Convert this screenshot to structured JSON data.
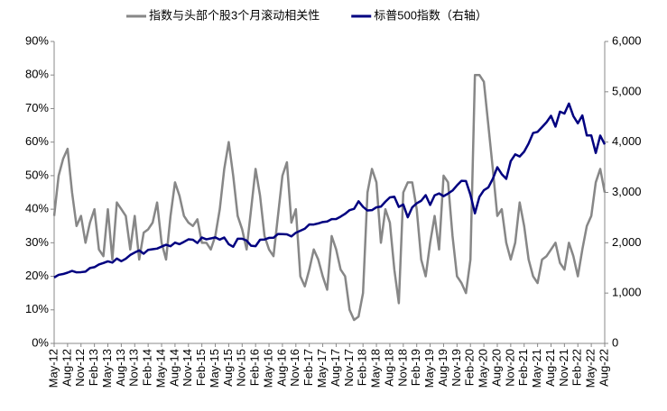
{
  "chart_data": {
    "type": "line",
    "categories": [
      "May-12",
      null,
      null,
      "Aug-12",
      null,
      null,
      "Nov-12",
      null,
      null,
      "Feb-13",
      null,
      null,
      "May-13",
      null,
      null,
      "Aug-13",
      null,
      null,
      "Nov-13",
      null,
      null,
      "Feb-14",
      null,
      null,
      "May-14",
      null,
      null,
      "Aug-14",
      null,
      null,
      "Nov-14",
      null,
      null,
      "Feb-15",
      null,
      null,
      "May-15",
      null,
      null,
      "Aug-15",
      null,
      null,
      "Nov-15",
      null,
      null,
      "Feb-16",
      null,
      null,
      "May-16",
      null,
      null,
      "Aug-16",
      null,
      null,
      "Nov-16",
      null,
      null,
      "Feb-17",
      null,
      null,
      "May-17",
      null,
      null,
      "Aug-17",
      null,
      null,
      "Nov-17",
      null,
      null,
      "Feb-18",
      null,
      null,
      "May-18",
      null,
      null,
      "Aug-18",
      null,
      null,
      "Nov-18",
      null,
      null,
      "Feb-19",
      null,
      null,
      "May-19",
      null,
      null,
      "Aug-19",
      null,
      null,
      "Nov-19",
      null,
      null,
      "Feb-20",
      null,
      null,
      "May-20",
      null,
      null,
      "Aug-20",
      null,
      null,
      "Nov-20",
      null,
      null,
      "Feb-21",
      null,
      null,
      "May-21",
      null,
      null,
      "Aug-21",
      null,
      null,
      "Nov-21",
      null,
      null,
      "Feb-22",
      null,
      null,
      "May-22",
      null,
      null,
      "Aug-22"
    ],
    "series": [
      {
        "name": "指数与头部个股3个月滚动相关性",
        "color": "#878787",
        "axis": "y",
        "values": [
          38,
          50,
          55,
          58,
          45,
          35,
          38,
          30,
          36,
          40,
          28,
          26,
          40,
          25,
          42,
          40,
          38,
          28,
          38,
          25,
          33,
          34,
          36,
          42,
          30,
          25,
          38,
          48,
          44,
          38,
          36,
          35,
          37,
          30,
          30,
          28,
          32,
          40,
          52,
          60,
          50,
          38,
          34,
          28,
          40,
          52,
          44,
          32,
          28,
          26,
          38,
          50,
          54,
          36,
          40,
          20,
          17,
          22,
          28,
          25,
          20,
          16,
          32,
          28,
          22,
          20,
          10,
          7,
          8,
          15,
          45,
          52,
          48,
          30,
          40,
          36,
          22,
          12,
          45,
          48,
          48,
          40,
          25,
          20,
          30,
          38,
          28,
          50,
          48,
          32,
          20,
          18,
          15,
          25,
          80,
          80,
          78,
          65,
          52,
          38,
          40,
          30,
          25,
          30,
          42,
          35,
          25,
          20,
          18,
          25,
          26,
          28,
          30,
          24,
          22,
          30,
          26,
          20,
          28,
          35,
          38,
          48,
          52,
          45
        ]
      },
      {
        "name": "标普500指数（右轴）",
        "color": "#000080",
        "axis": "y2",
        "values": [
          1310,
          1362,
          1379,
          1406,
          1440,
          1412,
          1416,
          1426,
          1498,
          1515,
          1569,
          1597,
          1631,
          1606,
          1686,
          1633,
          1682,
          1757,
          1806,
          1848,
          1783,
          1859,
          1872,
          1884,
          1924,
          1960,
          1931,
          2003,
          1972,
          2018,
          2068,
          2059,
          1995,
          2105,
          2068,
          2086,
          2107,
          2063,
          2104,
          1972,
          1920,
          2079,
          2080,
          2044,
          1940,
          1932,
          2060,
          2065,
          2097,
          2099,
          2174,
          2171,
          2168,
          2126,
          2199,
          2239,
          2279,
          2364,
          2363,
          2384,
          2412,
          2423,
          2470,
          2472,
          2519,
          2575,
          2648,
          2674,
          2824,
          2714,
          2641,
          2648,
          2705,
          2718,
          2816,
          2902,
          2914,
          2712,
          2760,
          2507,
          2704,
          2784,
          2834,
          2946,
          2752,
          2942,
          2980,
          2926,
          2977,
          3038,
          3141,
          3231,
          3226,
          2954,
          2585,
          2912,
          3044,
          3100,
          3271,
          3500,
          3363,
          3270,
          3622,
          3756,
          3714,
          3811,
          3973,
          4181,
          4204,
          4298,
          4395,
          4523,
          4308,
          4605,
          4567,
          4766,
          4516,
          4374,
          4530,
          4132,
          4132,
          3785,
          4130,
          3955
        ]
      }
    ],
    "ylim": [
      0,
      90
    ],
    "yticks": [
      {
        "value": 0,
        "label": "0%"
      },
      {
        "value": 10,
        "label": "10%"
      },
      {
        "value": 20,
        "label": "20%"
      },
      {
        "value": 30,
        "label": "30%"
      },
      {
        "value": 40,
        "label": "40%"
      },
      {
        "value": 50,
        "label": "50%"
      },
      {
        "value": 60,
        "label": "60%"
      },
      {
        "value": 70,
        "label": "70%"
      },
      {
        "value": 80,
        "label": "80%"
      },
      {
        "value": 90,
        "label": "90%"
      }
    ],
    "y2lim": [
      0,
      6000
    ],
    "y2ticks": [
      0,
      {
        "value": 1000,
        "label": "1,000"
      },
      {
        "value": 2000,
        "label": "2,000"
      },
      {
        "value": 3000,
        "label": "3,000"
      },
      {
        "value": 4000,
        "label": "4,000"
      },
      {
        "value": 5000,
        "label": "5,000"
      },
      {
        "value": 6000,
        "label": "6,000"
      }
    ],
    "grid": false,
    "legend": "top"
  }
}
